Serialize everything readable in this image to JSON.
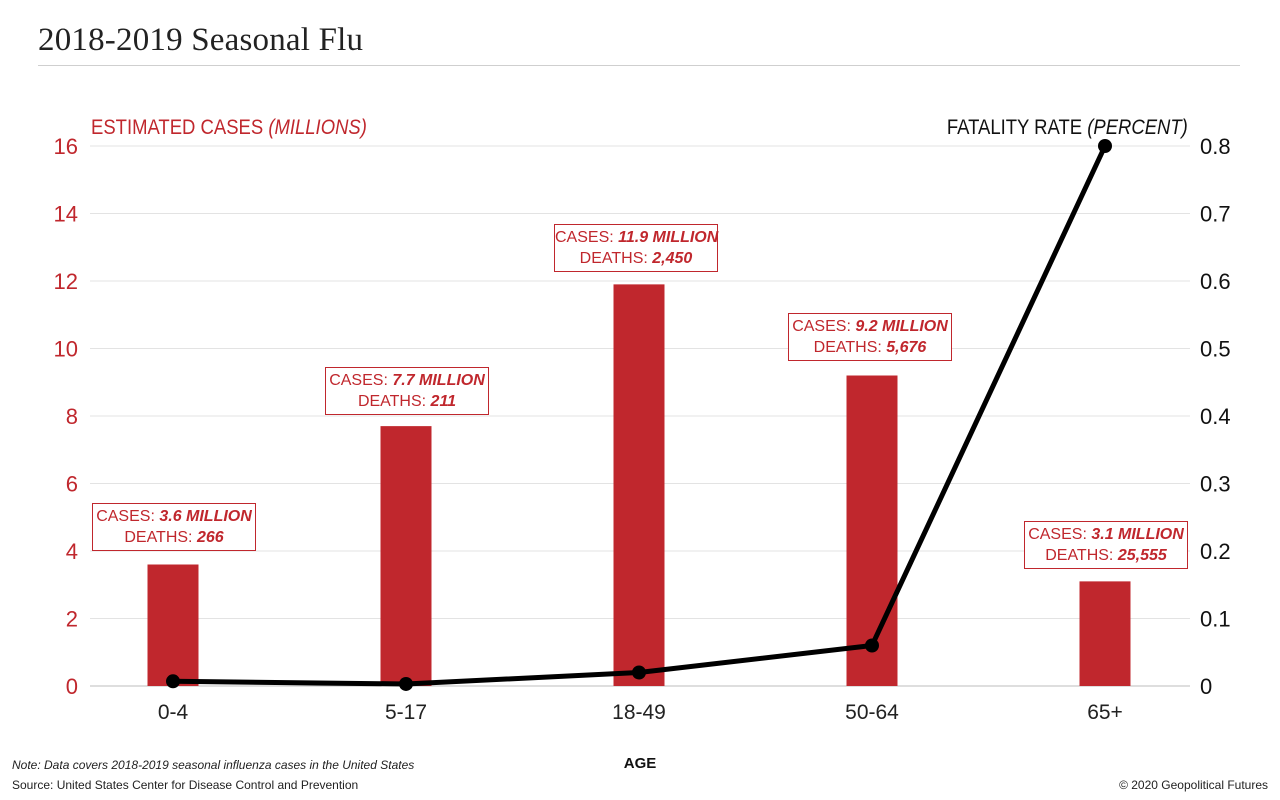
{
  "title": "2018-2019 Seasonal Flu",
  "left_axis": {
    "label": "ESTIMATED CASES",
    "unit": "(MILLIONS)"
  },
  "right_axis": {
    "label": "FATALITY RATE",
    "unit": "(PERCENT)"
  },
  "x_axis_title": "AGE",
  "note": "Note: Data covers 2018-2019 seasonal influenza cases in the United States",
  "source": "Source: United States Center for Disease Control and Prevention",
  "copyright": "© 2020 Geopolitical Futures",
  "colors": {
    "bars": "#c0272d",
    "line": "#000000",
    "left_axis_text": "#c0272d",
    "right_axis_text": "#111111"
  },
  "callouts": [
    {
      "cases_label": "CASES:",
      "cases_value": "3.6 MILLION",
      "deaths_label": "DEATHS:",
      "deaths_value": "266"
    },
    {
      "cases_label": "CASES:",
      "cases_value": "7.7 MILLION",
      "deaths_label": "DEATHS:",
      "deaths_value": "211"
    },
    {
      "cases_label": "CASES:",
      "cases_value": "11.9 MILLION",
      "deaths_label": "DEATHS:",
      "deaths_value": "2,450"
    },
    {
      "cases_label": "CASES:",
      "cases_value": "9.2 MILLION",
      "deaths_label": "DEATHS:",
      "deaths_value": "5,676"
    },
    {
      "cases_label": "CASES:",
      "cases_value": "3.1 MILLION",
      "deaths_label": "DEATHS:",
      "deaths_value": "25,555"
    }
  ],
  "chart_data": {
    "type": "bar",
    "title": "2018-2019 Seasonal Flu",
    "xlabel": "AGE",
    "categories": [
      "0-4",
      "5-17",
      "18-49",
      "50-64",
      "65+"
    ],
    "series": [
      {
        "name": "ESTIMATED CASES (MILLIONS)",
        "type": "bar",
        "axis": "left",
        "values": [
          3.6,
          7.7,
          11.9,
          9.2,
          3.1
        ]
      },
      {
        "name": "FATALITY RATE (PERCENT)",
        "type": "line",
        "axis": "right",
        "values": [
          0.007,
          0.003,
          0.02,
          0.06,
          0.8
        ]
      }
    ],
    "ylim_left": [
      0,
      16
    ],
    "yticks_left": [
      0,
      2,
      4,
      6,
      8,
      10,
      12,
      14,
      16
    ],
    "ylim_right": [
      0,
      0.8
    ],
    "yticks_right": [
      "0",
      "0.1",
      "0.2",
      "0.3",
      "0.4",
      "0.5",
      "0.6",
      "0.7",
      "0.8"
    ],
    "grid": true
  }
}
